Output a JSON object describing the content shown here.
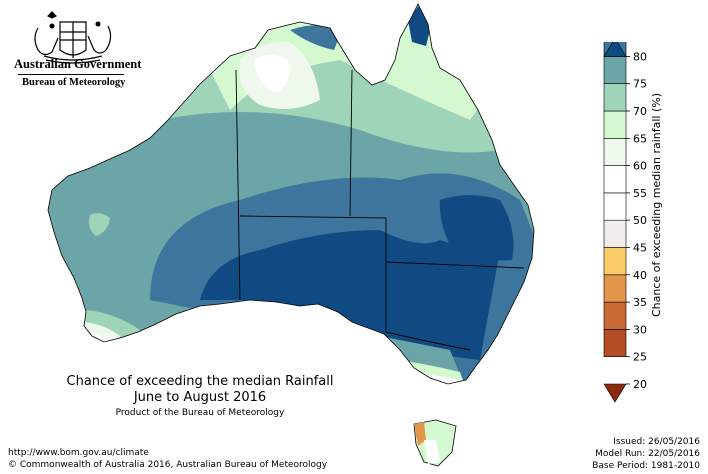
{
  "agency": {
    "name": "Australian Government",
    "bureau": "Bureau of Meteorology",
    "emblem_icon": "coat-of-arms-icon"
  },
  "title": {
    "line1": "Chance of exceeding the median Rainfall",
    "line2": "June to August 2016",
    "line3": "Product of the Bureau of Meteorology"
  },
  "footer": {
    "url": "http://www.bom.gov.au/climate",
    "copyright": "© Commonwealth of Australia 2016, Australian Bureau of Meteorology",
    "issued": "Issued: 26/05/2016",
    "model_run": "Model Run: 22/05/2016",
    "base_period": "Base Period: 1981-2010"
  },
  "legend": {
    "title": "Chance of exceeding median rainfall (%)",
    "ticks": [
      "20",
      "25",
      "30",
      "35",
      "40",
      "45",
      "50",
      "55",
      "60",
      "65",
      "70",
      "75",
      "80"
    ],
    "bins": [
      {
        "range": "<20",
        "color": "#8c2a0e"
      },
      {
        "range": "20-25",
        "color": "#b34d23"
      },
      {
        "range": "25-30",
        "color": "#c96a35"
      },
      {
        "range": "30-35",
        "color": "#e2964a"
      },
      {
        "range": "35-40",
        "color": "#fccc6a"
      },
      {
        "range": "40-45",
        "color": "#f0edea"
      },
      {
        "range": "45-50",
        "color": "#ffffff"
      },
      {
        "range": "50-55",
        "color": "#ffffff"
      },
      {
        "range": "55-60",
        "color": "#eef8ec"
      },
      {
        "range": "60-65",
        "color": "#d4f8cf"
      },
      {
        "range": "65-70",
        "color": "#9fd4b8"
      },
      {
        "range": "70-75",
        "color": "#6ca5a8"
      },
      {
        "range": "75-80",
        "color": "#3e759c"
      },
      {
        "range": ">80",
        "color": "#0f4b82"
      }
    ]
  }
}
